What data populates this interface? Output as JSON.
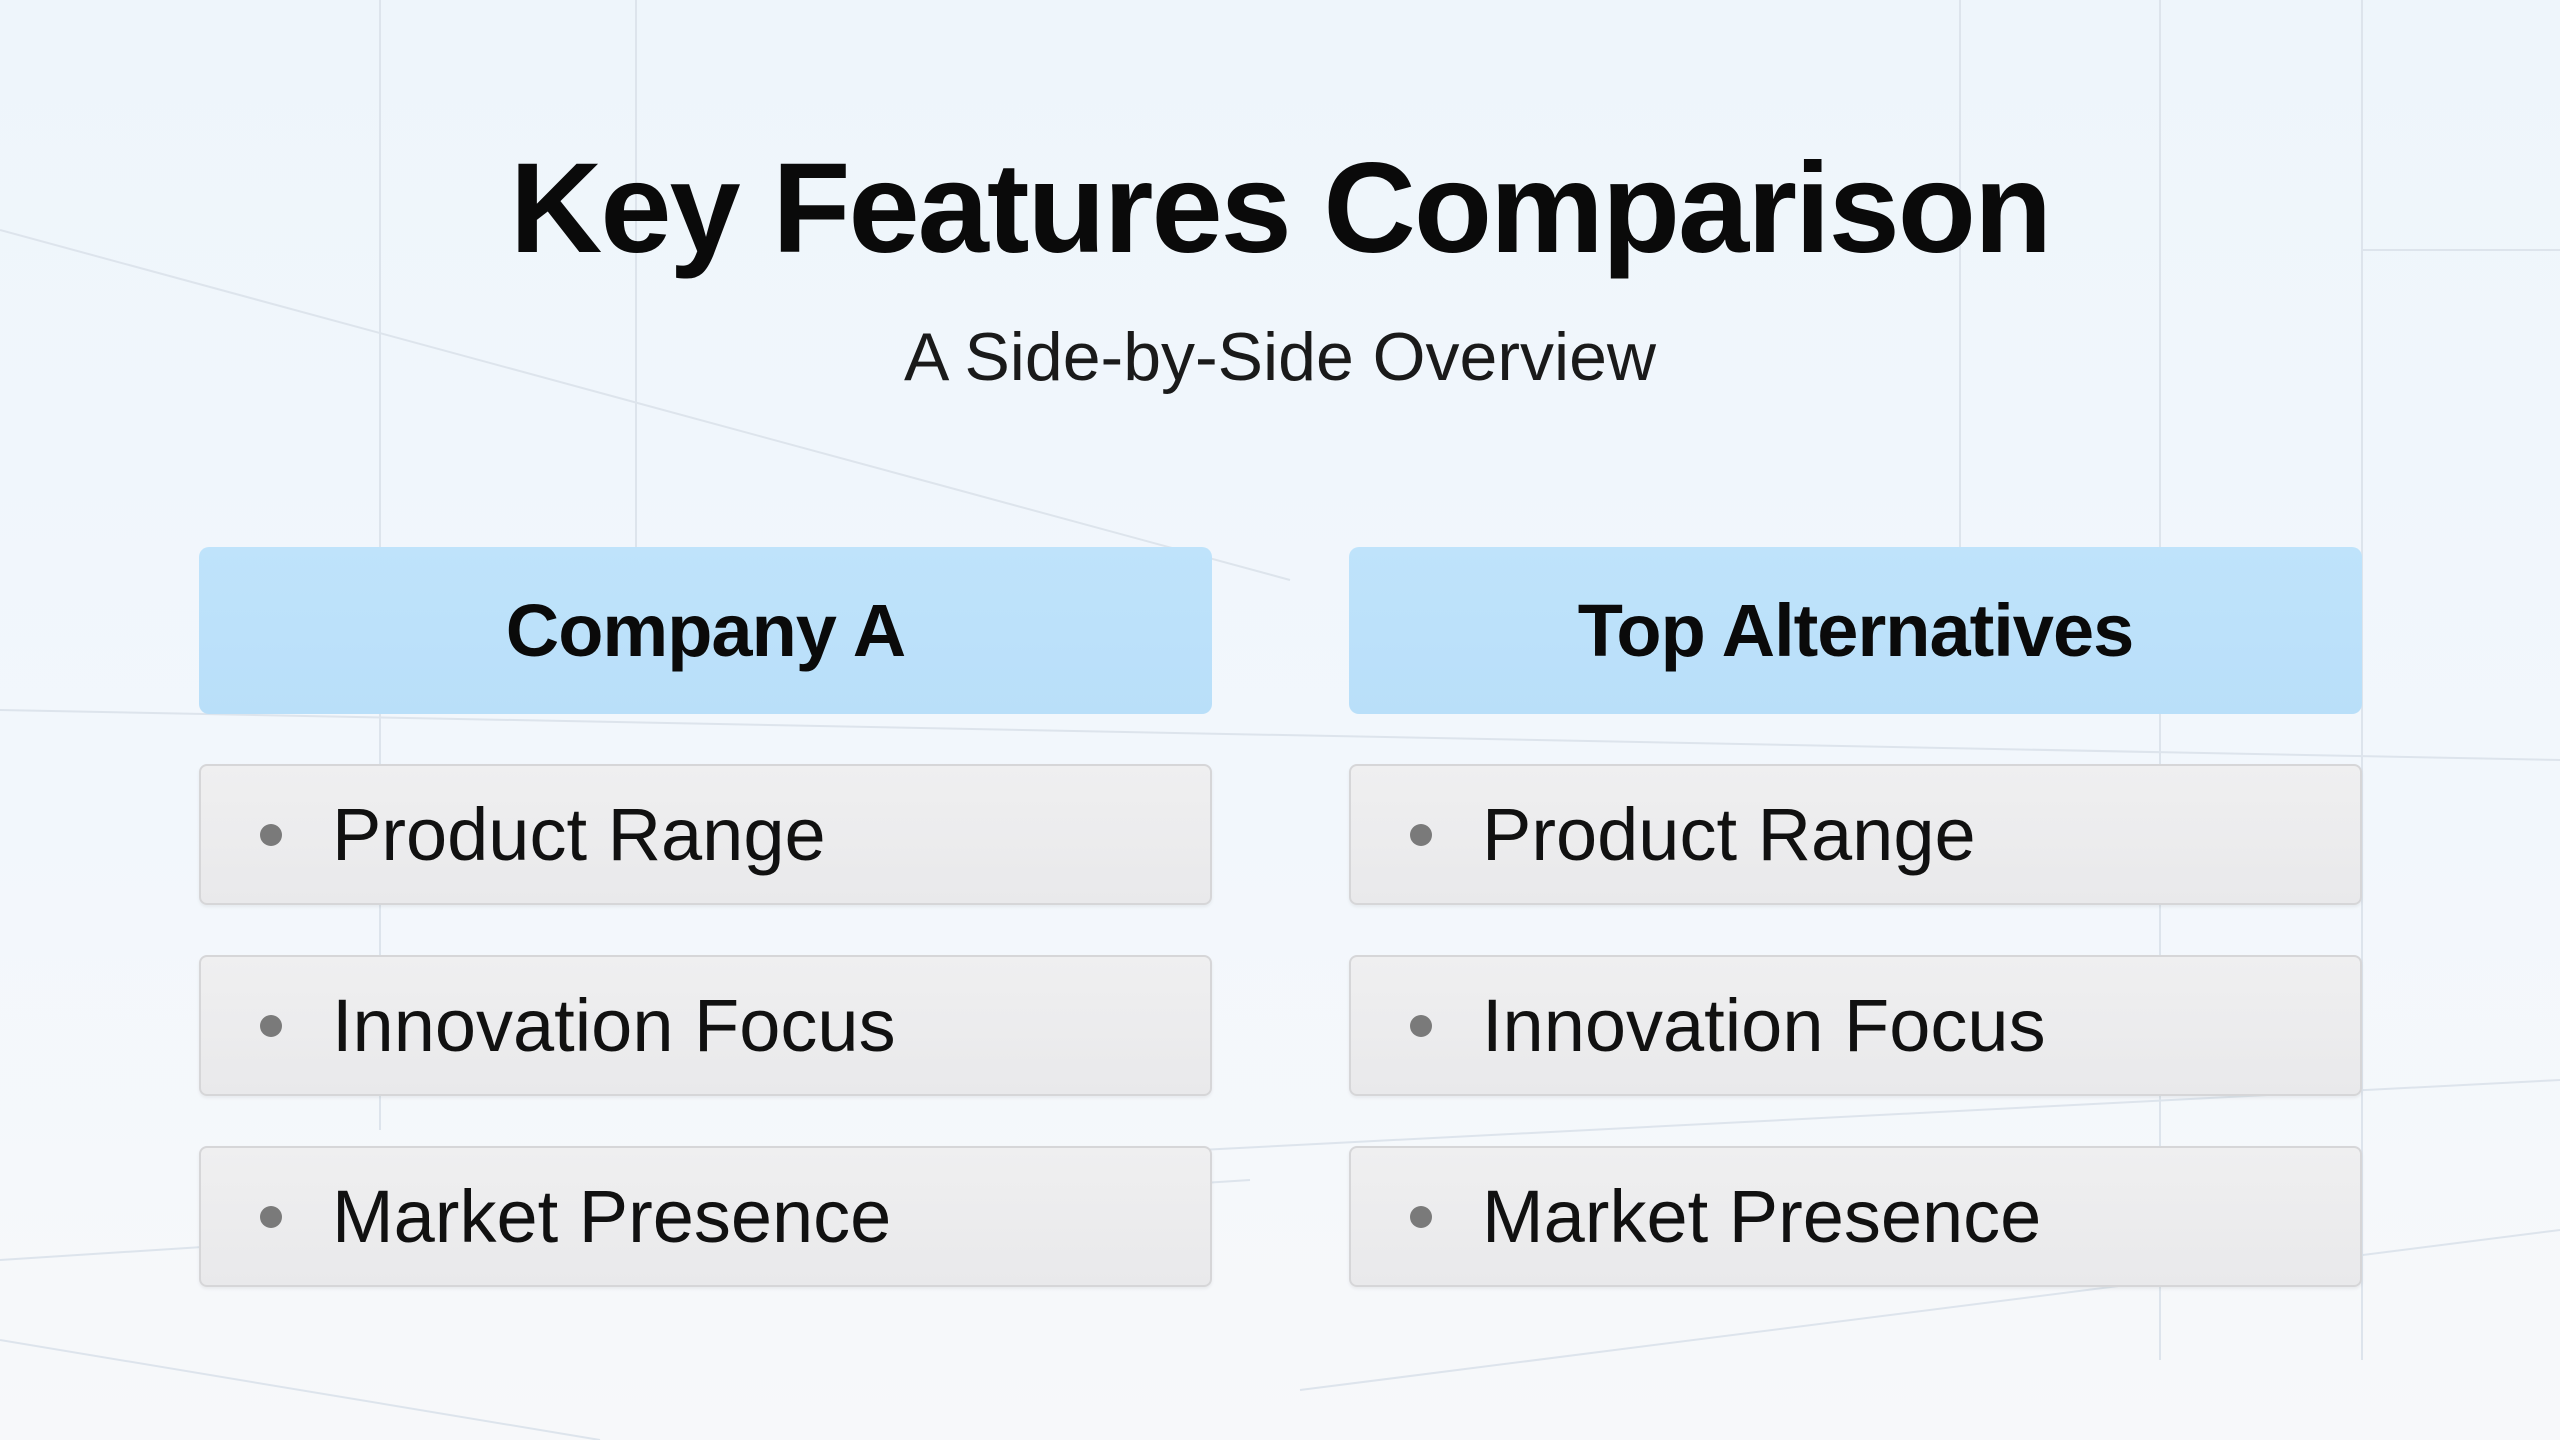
{
  "title": "Key Features Comparison",
  "subtitle": "A Side-by-Side Overview",
  "columns": [
    {
      "header": "Company A",
      "items": [
        "Product Range",
        "Innovation Focus",
        "Market Presence"
      ]
    },
    {
      "header": "Top Alternatives",
      "items": [
        "Product Range",
        "Innovation Focus",
        "Market Presence"
      ]
    }
  ],
  "colors": {
    "header_bg": "#bfe3fb",
    "row_bg": "#ececee",
    "bullet": "#7a7a7a"
  }
}
